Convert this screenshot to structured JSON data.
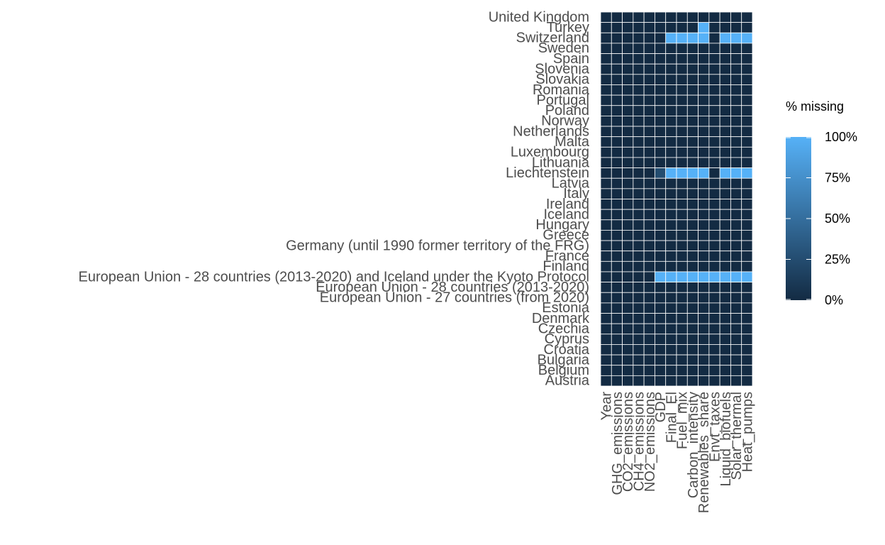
{
  "chart_data": {
    "type": "heatmap",
    "legend": {
      "title": "% missing",
      "ticks": [
        "100%",
        "75%",
        "50%",
        "25%",
        "0%"
      ],
      "tick_values": [
        100,
        75,
        50,
        25,
        0
      ],
      "low_color": "#132b43",
      "high_color": "#56b1f7",
      "placement": "right"
    },
    "x_categories": [
      "Year",
      "GHG_emissions",
      "CO2_emissions",
      "CH4_emissions",
      "NO2_emissions",
      "GDP",
      "Final_El",
      "Fuel_mix",
      "Carbon_intensity",
      "Renewables_share",
      "Envt_taxes",
      "Liquid_biofuels",
      "Solar_thermal",
      "Heat_pumps"
    ],
    "y_categories": [
      "United Kingdom",
      "Turkey",
      "Switzerland",
      "Sweden",
      "Spain",
      "Slovenia",
      "Slovakia",
      "Romania",
      "Portugal",
      "Poland",
      "Norway",
      "Netherlands",
      "Malta",
      "Luxembourg",
      "Lithuania",
      "Liechtenstein",
      "Latvia",
      "Italy",
      "Ireland",
      "Iceland",
      "Hungary",
      "Greece",
      "Germany (until 1990 former territory of the FRG)",
      "France",
      "Finland",
      "European Union - 28 countries (2013-2020) and Iceland under the Kyoto Protocol",
      "European Union - 28 countries (2013-2020)",
      "European Union - 27 countries (from 2020)",
      "Estonia",
      "Denmark",
      "Czechia",
      "Cyprus",
      "Croatia",
      "Bulgaria",
      "Belgium",
      "Austria"
    ],
    "values": [
      [
        0,
        0,
        0,
        0,
        0,
        0,
        0,
        0,
        0,
        0,
        0,
        0,
        0,
        0
      ],
      [
        0,
        0,
        0,
        0,
        0,
        0,
        0,
        0,
        0,
        100,
        0,
        0,
        0,
        0
      ],
      [
        0,
        0,
        0,
        0,
        0,
        0,
        100,
        100,
        100,
        100,
        0,
        100,
        100,
        100
      ],
      [
        0,
        0,
        0,
        0,
        0,
        0,
        0,
        0,
        0,
        0,
        0,
        0,
        0,
        0
      ],
      [
        0,
        0,
        0,
        0,
        0,
        0,
        0,
        0,
        0,
        0,
        0,
        0,
        0,
        0
      ],
      [
        0,
        0,
        0,
        0,
        0,
        0,
        0,
        0,
        0,
        0,
        0,
        0,
        0,
        0
      ],
      [
        0,
        0,
        0,
        0,
        0,
        0,
        0,
        0,
        0,
        0,
        0,
        0,
        0,
        0
      ],
      [
        0,
        0,
        0,
        0,
        0,
        0,
        0,
        0,
        0,
        0,
        0,
        0,
        0,
        0
      ],
      [
        0,
        0,
        0,
        0,
        0,
        0,
        0,
        0,
        0,
        0,
        0,
        0,
        0,
        0
      ],
      [
        0,
        0,
        0,
        0,
        0,
        0,
        0,
        0,
        0,
        0,
        0,
        0,
        0,
        0
      ],
      [
        0,
        0,
        0,
        0,
        0,
        0,
        0,
        0,
        0,
        0,
        0,
        0,
        0,
        0
      ],
      [
        0,
        0,
        0,
        0,
        0,
        0,
        0,
        0,
        0,
        0,
        0,
        0,
        0,
        0
      ],
      [
        0,
        0,
        0,
        0,
        0,
        0,
        0,
        0,
        0,
        0,
        0,
        0,
        0,
        0
      ],
      [
        0,
        0,
        0,
        0,
        0,
        0,
        0,
        0,
        0,
        0,
        0,
        0,
        0,
        0
      ],
      [
        0,
        0,
        0,
        0,
        0,
        0,
        0,
        0,
        0,
        0,
        0,
        0,
        0,
        0
      ],
      [
        0,
        0,
        0,
        0,
        0,
        25,
        100,
        100,
        100,
        100,
        0,
        100,
        100,
        100
      ],
      [
        0,
        0,
        0,
        0,
        0,
        0,
        0,
        0,
        0,
        0,
        0,
        0,
        0,
        0
      ],
      [
        0,
        0,
        0,
        0,
        0,
        0,
        0,
        0,
        0,
        0,
        0,
        0,
        0,
        0
      ],
      [
        0,
        0,
        0,
        0,
        0,
        0,
        0,
        0,
        0,
        0,
        0,
        0,
        0,
        0
      ],
      [
        0,
        0,
        0,
        0,
        0,
        0,
        0,
        0,
        0,
        0,
        0,
        0,
        0,
        0
      ],
      [
        0,
        0,
        0,
        0,
        0,
        0,
        0,
        0,
        0,
        0,
        0,
        0,
        0,
        0
      ],
      [
        0,
        0,
        0,
        0,
        0,
        0,
        0,
        0,
        0,
        0,
        0,
        0,
        0,
        0
      ],
      [
        0,
        0,
        0,
        0,
        0,
        0,
        0,
        0,
        0,
        0,
        0,
        0,
        0,
        0
      ],
      [
        0,
        0,
        0,
        0,
        0,
        0,
        0,
        0,
        0,
        0,
        0,
        0,
        0,
        0
      ],
      [
        0,
        0,
        0,
        0,
        0,
        0,
        0,
        0,
        0,
        0,
        0,
        0,
        0,
        0
      ],
      [
        0,
        0,
        0,
        0,
        0,
        100,
        100,
        100,
        100,
        100,
        100,
        100,
        100,
        100
      ],
      [
        0,
        0,
        0,
        0,
        0,
        0,
        0,
        0,
        0,
        0,
        0,
        0,
        0,
        0
      ],
      [
        0,
        0,
        0,
        0,
        0,
        0,
        0,
        0,
        0,
        0,
        0,
        0,
        0,
        0
      ],
      [
        0,
        0,
        0,
        0,
        0,
        0,
        0,
        0,
        0,
        0,
        0,
        0,
        0,
        0
      ],
      [
        0,
        0,
        0,
        0,
        0,
        0,
        0,
        0,
        0,
        0,
        0,
        0,
        0,
        0
      ],
      [
        0,
        0,
        0,
        0,
        0,
        0,
        0,
        0,
        0,
        0,
        0,
        0,
        0,
        0
      ],
      [
        0,
        0,
        0,
        0,
        0,
        0,
        0,
        0,
        0,
        0,
        0,
        0,
        0,
        0
      ],
      [
        0,
        0,
        0,
        0,
        0,
        0,
        0,
        0,
        0,
        0,
        0,
        0,
        0,
        0
      ],
      [
        0,
        0,
        0,
        0,
        0,
        0,
        0,
        0,
        0,
        0,
        0,
        0,
        0,
        0
      ],
      [
        0,
        0,
        0,
        0,
        0,
        0,
        0,
        0,
        0,
        0,
        0,
        0,
        0,
        0
      ],
      [
        0,
        0,
        0,
        0,
        0,
        0,
        0,
        0,
        0,
        0,
        0,
        0,
        0,
        0
      ]
    ],
    "grid": true
  }
}
